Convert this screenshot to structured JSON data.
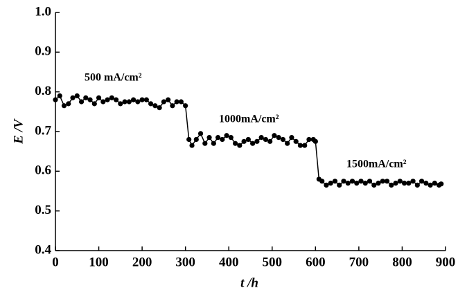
{
  "chart_data": {
    "type": "line",
    "x": [
      0,
      10,
      20,
      30,
      40,
      50,
      60,
      70,
      80,
      90,
      100,
      110,
      120,
      130,
      140,
      150,
      160,
      170,
      180,
      190,
      200,
      210,
      220,
      230,
      240,
      250,
      260,
      270,
      280,
      290,
      300,
      308,
      315,
      325,
      335,
      345,
      355,
      365,
      375,
      385,
      395,
      405,
      415,
      425,
      435,
      445,
      455,
      465,
      475,
      485,
      495,
      505,
      515,
      525,
      535,
      545,
      555,
      565,
      575,
      585,
      595,
      600,
      608,
      615,
      625,
      635,
      645,
      655,
      665,
      675,
      685,
      695,
      705,
      715,
      725,
      735,
      745,
      755,
      765,
      775,
      785,
      795,
      805,
      815,
      825,
      835,
      845,
      855,
      865,
      875,
      885,
      890
    ],
    "series": [
      {
        "name": "E",
        "color": "#000000",
        "values": [
          0.78,
          0.79,
          0.765,
          0.77,
          0.785,
          0.79,
          0.775,
          0.785,
          0.78,
          0.77,
          0.785,
          0.775,
          0.78,
          0.785,
          0.78,
          0.77,
          0.775,
          0.775,
          0.78,
          0.775,
          0.78,
          0.78,
          0.77,
          0.765,
          0.76,
          0.775,
          0.78,
          0.765,
          0.775,
          0.775,
          0.765,
          0.68,
          0.665,
          0.68,
          0.695,
          0.67,
          0.685,
          0.67,
          0.685,
          0.68,
          0.69,
          0.685,
          0.67,
          0.665,
          0.675,
          0.68,
          0.67,
          0.675,
          0.685,
          0.68,
          0.675,
          0.69,
          0.685,
          0.68,
          0.67,
          0.685,
          0.675,
          0.665,
          0.665,
          0.68,
          0.68,
          0.675,
          0.58,
          0.575,
          0.565,
          0.57,
          0.575,
          0.565,
          0.575,
          0.57,
          0.575,
          0.57,
          0.575,
          0.57,
          0.575,
          0.565,
          0.57,
          0.575,
          0.575,
          0.565,
          0.57,
          0.575,
          0.57,
          0.57,
          0.575,
          0.565,
          0.575,
          0.57,
          0.565,
          0.57,
          0.565,
          0.568
        ]
      }
    ],
    "xlabel": "t /h",
    "ylabel": "E /V",
    "xlim": [
      0,
      900
    ],
    "xticks": [
      0,
      100,
      200,
      300,
      400,
      500,
      600,
      700,
      800,
      900
    ],
    "ylim": [
      0.4,
      1.0
    ],
    "yticks": [
      0.4,
      0.5,
      0.6,
      0.7,
      0.8,
      0.9,
      {
        "value": 1.0,
        "label": "1.0"
      }
    ],
    "annotations": [
      "500 mA/cm²",
      "1000mA/cm²",
      "1500mA/cm²"
    ]
  }
}
